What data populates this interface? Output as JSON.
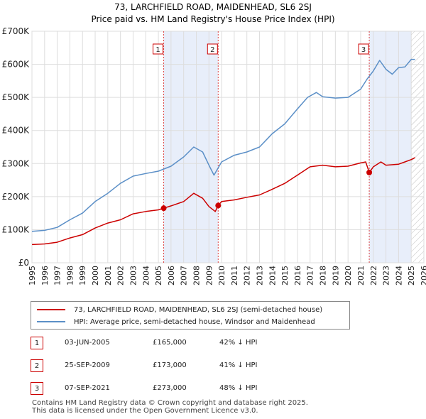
{
  "chart_data": {
    "type": "line",
    "title": "73, LARCHFIELD ROAD, MAIDENHEAD, SL6 2SJ",
    "subtitle": "Price paid vs. HM Land Registry's House Price Index (HPI)",
    "xlim": [
      1995,
      2026
    ],
    "ylim": [
      0,
      700000
    ],
    "y_ticks": [
      {
        "value": 0,
        "label": "£0"
      },
      {
        "value": 100000,
        "label": "£100K"
      },
      {
        "value": 200000,
        "label": "£200K"
      },
      {
        "value": 300000,
        "label": "£300K"
      },
      {
        "value": 400000,
        "label": "£400K"
      },
      {
        "value": 500000,
        "label": "£500K"
      },
      {
        "value": 600000,
        "label": "£600K"
      },
      {
        "value": 700000,
        "label": "£700K"
      }
    ],
    "x_ticks": [
      "1995",
      "1996",
      "1997",
      "1998",
      "1999",
      "2000",
      "2001",
      "2002",
      "2003",
      "2004",
      "2005",
      "2006",
      "2007",
      "2008",
      "2009",
      "2010",
      "2011",
      "2012",
      "2013",
      "2014",
      "2015",
      "2016",
      "2017",
      "2018",
      "2019",
      "2020",
      "2021",
      "2022",
      "2023",
      "2024",
      "2025",
      "2026"
    ],
    "grid": true,
    "series": [
      {
        "name": "73, LARCHFIELD ROAD, MAIDENHEAD, SL6 2SJ (semi-detached house)",
        "color": "#cc0000",
        "x": [
          1995.0,
          1996.0,
          1997.0,
          1998.0,
          1999.0,
          2000.0,
          2001.0,
          2002.0,
          2003.0,
          2004.0,
          2005.0,
          2005.42,
          2006.0,
          2007.0,
          2007.8,
          2008.5,
          2009.0,
          2009.5,
          2009.73,
          2010.0,
          2011.0,
          2012.0,
          2013.0,
          2014.0,
          2015.0,
          2016.0,
          2017.0,
          2018.0,
          2019.0,
          2020.0,
          2021.0,
          2021.4,
          2021.68,
          2022.0,
          2022.6,
          2023.0,
          2024.0,
          2024.5,
          2025.0,
          2025.3
        ],
        "y": [
          55000,
          57000,
          62000,
          75000,
          85000,
          105000,
          120000,
          130000,
          148000,
          155000,
          160000,
          165000,
          172000,
          185000,
          210000,
          195000,
          170000,
          155000,
          173000,
          185000,
          190000,
          198000,
          205000,
          222000,
          240000,
          265000,
          290000,
          295000,
          290000,
          292000,
          302000,
          305000,
          273000,
          290000,
          305000,
          295000,
          298000,
          305000,
          312000,
          318000
        ]
      },
      {
        "name": "HPI: Average price, semi-detached house, Windsor and Maidenhead",
        "color": "#5b8fc7",
        "x": [
          1995.0,
          1996.0,
          1997.0,
          1998.0,
          1999.0,
          2000.0,
          2001.0,
          2002.0,
          2003.0,
          2004.0,
          2005.0,
          2006.0,
          2007.0,
          2007.8,
          2008.5,
          2009.0,
          2009.4,
          2010.0,
          2011.0,
          2012.0,
          2013.0,
          2014.0,
          2015.0,
          2016.0,
          2016.8,
          2017.5,
          2018.0,
          2019.0,
          2020.0,
          2021.0,
          2021.5,
          2022.0,
          2022.5,
          2023.0,
          2023.5,
          2024.0,
          2024.5,
          2025.0,
          2025.3
        ],
        "y": [
          95000,
          98000,
          107000,
          130000,
          150000,
          185000,
          210000,
          240000,
          262000,
          270000,
          277000,
          292000,
          320000,
          350000,
          335000,
          295000,
          265000,
          305000,
          325000,
          335000,
          350000,
          390000,
          420000,
          465000,
          500000,
          515000,
          502000,
          498000,
          500000,
          525000,
          555000,
          580000,
          612000,
          585000,
          570000,
          590000,
          592000,
          615000,
          615000
        ]
      }
    ],
    "sales": [
      {
        "number": "1",
        "x": 2005.42,
        "y": 165000
      },
      {
        "number": "2",
        "x": 2009.73,
        "y": 173000
      },
      {
        "number": "3",
        "x": 2021.68,
        "y": 273000
      }
    ],
    "shaded_ranges": [
      [
        2005.42,
        2009.73
      ],
      [
        2021.68,
        2025.0
      ]
    ],
    "hatched_from": 2025.0
  },
  "legend": {
    "property_label": "73, LARCHFIELD ROAD, MAIDENHEAD, SL6 2SJ (semi-detached house)",
    "hpi_label": "HPI: Average price, semi-detached house, Windsor and Maidenhead"
  },
  "sales_table": [
    {
      "number": "1",
      "date": "03-JUN-2005",
      "price": "£165,000",
      "hpi": "42% ↓ HPI"
    },
    {
      "number": "2",
      "date": "25-SEP-2009",
      "price": "£173,000",
      "hpi": "41% ↓ HPI"
    },
    {
      "number": "3",
      "date": "07-SEP-2021",
      "price": "£273,000",
      "hpi": "48% ↓ HPI"
    }
  ],
  "footer": {
    "line1": "Contains HM Land Registry data © Crown copyright and database right 2025.",
    "line2": "This data is licensed under the Open Government Licence v3.0."
  }
}
